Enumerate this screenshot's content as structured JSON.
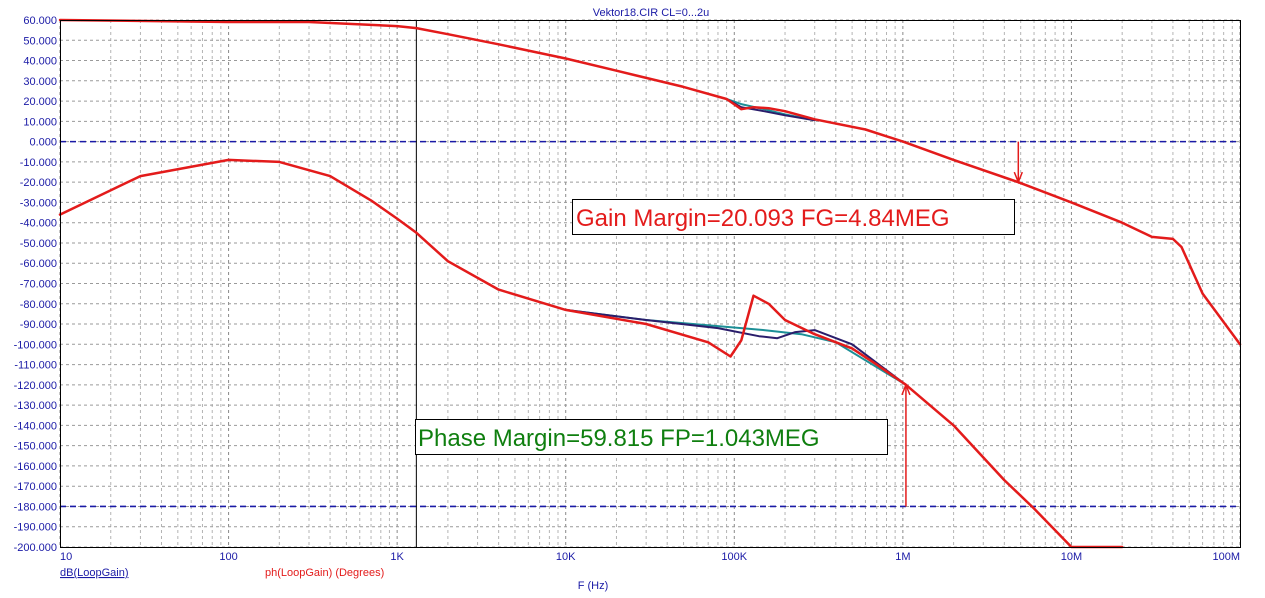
{
  "colors": {
    "axis_text": "#1a1aa6",
    "gain": "#e31b1b",
    "phase": "#e31b1b",
    "alt_dark": "#2a1d6b",
    "alt_teal": "#1c8f96",
    "reference": "#1a1aa6",
    "cursor": "#000000",
    "phase_annotation": "#0f7f0f",
    "gain_annotation": "#e31b1b"
  },
  "chart_data": {
    "type": "line",
    "title": "Vektor18.CIR CL=0...2u",
    "xlabel": "F (Hz)",
    "ylabel": "",
    "x_scale": "log",
    "xlim": [
      10,
      100000000
    ],
    "ylim": [
      -200,
      60
    ],
    "grid": true,
    "x_ticks": [
      {
        "value": 10,
        "label": "10"
      },
      {
        "value": 100,
        "label": "100"
      },
      {
        "value": 1000,
        "label": "1K"
      },
      {
        "value": 10000,
        "label": "10K"
      },
      {
        "value": 100000,
        "label": "100K"
      },
      {
        "value": 1000000,
        "label": "1M"
      },
      {
        "value": 10000000,
        "label": "10M"
      },
      {
        "value": 100000000,
        "label": "100M"
      }
    ],
    "y_ticks": [
      {
        "value": 60,
        "label": "60.000"
      },
      {
        "value": 50,
        "label": "50.000"
      },
      {
        "value": 40,
        "label": "40.000"
      },
      {
        "value": 30,
        "label": "30.000"
      },
      {
        "value": 20,
        "label": "20.000"
      },
      {
        "value": 10,
        "label": "10.000"
      },
      {
        "value": 0,
        "label": "0.000"
      },
      {
        "value": -10,
        "label": "-10.000"
      },
      {
        "value": -20,
        "label": "-20.000"
      },
      {
        "value": -30,
        "label": "-30.000"
      },
      {
        "value": -40,
        "label": "-40.000"
      },
      {
        "value": -50,
        "label": "-50.000"
      },
      {
        "value": -60,
        "label": "-60.000"
      },
      {
        "value": -70,
        "label": "-70.000"
      },
      {
        "value": -80,
        "label": "-80.000"
      },
      {
        "value": -90,
        "label": "-90.000"
      },
      {
        "value": -100,
        "label": "-100.000"
      },
      {
        "value": -110,
        "label": "-110.000"
      },
      {
        "value": -120,
        "label": "-120.000"
      },
      {
        "value": -130,
        "label": "-130.000"
      },
      {
        "value": -140,
        "label": "-140.000"
      },
      {
        "value": -150,
        "label": "-150.000"
      },
      {
        "value": -160,
        "label": "-160.000"
      },
      {
        "value": -170,
        "label": "-170.000"
      },
      {
        "value": -180,
        "label": "-180.000"
      },
      {
        "value": -190,
        "label": "-190.000"
      },
      {
        "value": -200,
        "label": "-200.000"
      }
    ],
    "legend": [
      {
        "label": "dB(LoopGain)",
        "color": "#1a1aa6"
      },
      {
        "label": "ph(LoopGain) (Degrees)",
        "color": "#e31b1b"
      }
    ],
    "reference_lines": [
      0,
      -180
    ],
    "cursor_x": 1300,
    "series": [
      {
        "color": "#e31b1b",
        "x": [
          10,
          100,
          300,
          1000,
          1300,
          2000,
          4000,
          10000,
          20000,
          50000,
          90000,
          110000,
          130000,
          160000,
          200000,
          300000,
          600000,
          1000000,
          2000000,
          4840000,
          10000000,
          20000000,
          30000000,
          40000000,
          45000000,
          60000000,
          100000000
        ],
        "y": [
          60,
          59,
          59,
          57,
          56,
          53,
          48,
          41,
          35,
          27,
          21,
          16,
          17,
          16.5,
          15,
          11,
          6,
          0,
          -9,
          -20,
          -30,
          -40,
          -47,
          -48,
          -52,
          -75,
          -100
        ]
      },
      {
        "color": "#2a1d6b",
        "x": [
          90000,
          110000,
          150000,
          200000,
          300000
        ],
        "y": [
          21,
          17,
          15,
          13,
          10.5
        ]
      },
      {
        "color": "#1c8f96",
        "x": [
          90000,
          110000,
          150000,
          200000,
          300000
        ],
        "y": [
          21,
          18.5,
          16,
          13.5,
          10.5
        ]
      },
      {
        "color": "#e31b1b",
        "x": [
          10,
          30,
          100,
          200,
          400,
          700,
          1000,
          1300,
          2000,
          4000,
          10000,
          30000,
          70000,
          95000,
          110000,
          130000,
          160000,
          200000,
          300000,
          500000,
          700000,
          1043000,
          2000000,
          4000000,
          6000000,
          10000000,
          20000000
        ],
        "y": [
          -36,
          -17,
          -9,
          -10,
          -17,
          -29,
          -38,
          -45,
          -59,
          -73,
          -83,
          -90,
          -99,
          -106,
          -98,
          -76,
          -80,
          -88,
          -95,
          -102,
          -110,
          -120,
          -140,
          -167,
          -181,
          -200,
          -210
        ]
      },
      {
        "color": "#2a1d6b",
        "x": [
          10000,
          30000,
          80000,
          140000,
          180000,
          230000,
          300000,
          500000,
          1043000
        ],
        "y": [
          -83,
          -88,
          -92,
          -96,
          -97,
          -94,
          -93,
          -100,
          -120
        ]
      },
      {
        "color": "#1c8f96",
        "x": [
          10000,
          30000,
          80000,
          150000,
          250000,
          400000,
          1043000
        ],
        "y": [
          -83,
          -88,
          -91,
          -93,
          -95,
          -99,
          -120
        ]
      }
    ],
    "annotations": [
      {
        "text": "Gain Margin=20.093 FG=4.84MEG",
        "arrow_x": 4840000,
        "arrow_from": 0,
        "arrow_to": -20
      },
      {
        "text": "Phase Margin=59.815 FP=1.043MEG",
        "arrow_x": 1043000,
        "arrow_from": -180,
        "arrow_to": -120
      }
    ]
  }
}
